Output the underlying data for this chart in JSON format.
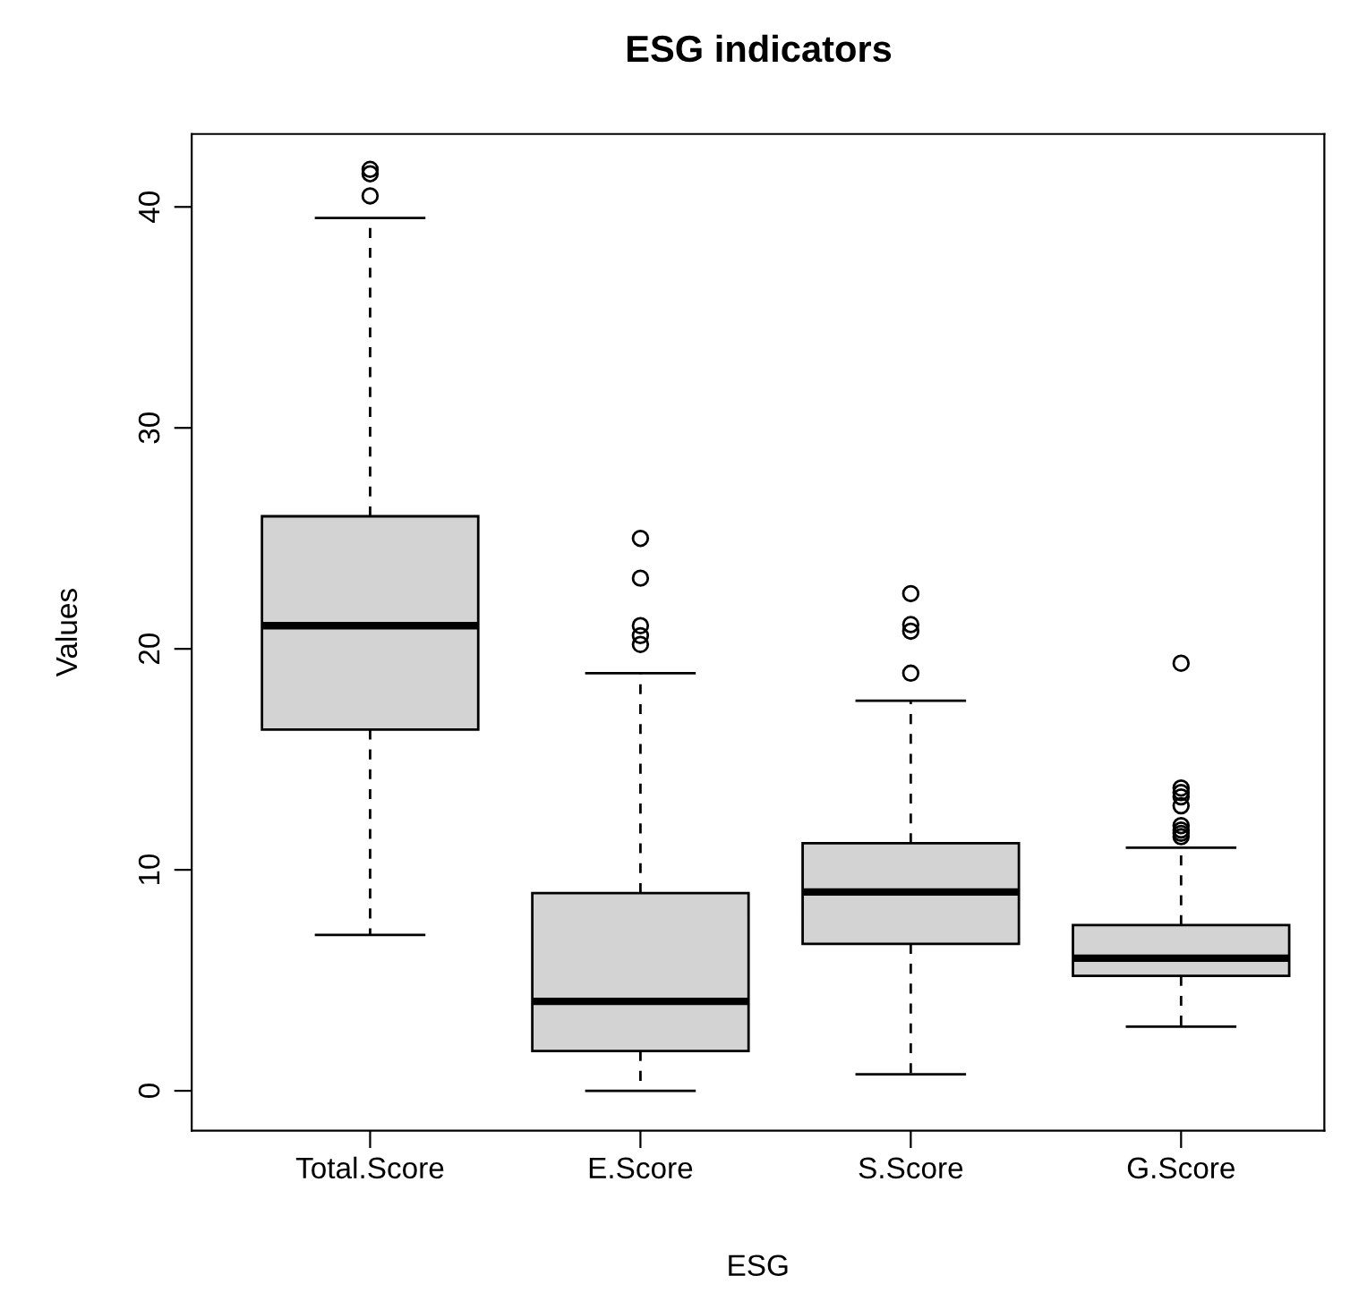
{
  "chart_data": {
    "type": "box",
    "title": "ESG indicators",
    "xlabel": "ESG",
    "ylabel": "Values",
    "categories": [
      "Total.Score",
      "E.Score",
      "S.Score",
      "G.Score"
    ],
    "color": "#d3d3d3",
    "ylim": [
      -1.8,
      43.3
    ],
    "yticks": [
      0,
      10,
      20,
      30,
      40
    ],
    "grid": false,
    "legend": false,
    "boxes": [
      {
        "low": 7.05,
        "q1": 16.35,
        "median": 21.05,
        "q3": 26.0,
        "high": 39.5,
        "outliers": [
          41.5,
          41.7,
          40.5
        ]
      },
      {
        "low": 0,
        "q1": 1.8,
        "median": 4.05,
        "q3": 8.95,
        "high": 18.9,
        "outliers": [
          25.0,
          23.2,
          21.05,
          20.6,
          20.2
        ]
      },
      {
        "low": 0.75,
        "q1": 6.65,
        "median": 9.0,
        "q3": 11.2,
        "high": 17.65,
        "outliers": [
          22.5,
          21.1,
          20.8,
          18.9
        ]
      },
      {
        "low": 2.9,
        "q1": 5.2,
        "median": 6.0,
        "q3": 7.5,
        "high": 11.0,
        "outliers": [
          19.35,
          13.7,
          13.5,
          13.3,
          12.9,
          12.0,
          11.8,
          11.65,
          11.5
        ]
      }
    ]
  }
}
